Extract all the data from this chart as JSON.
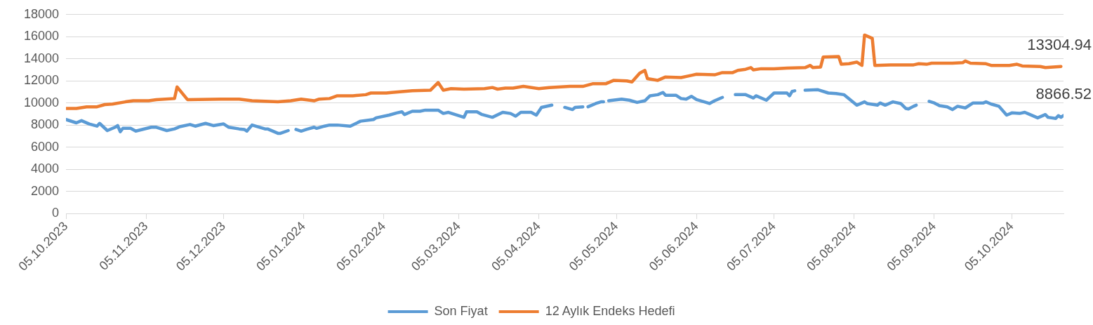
{
  "chart_data": {
    "type": "line",
    "grid": "y",
    "legend": "bottom",
    "xlim": [
      "2023-10-05",
      "2024-10-25"
    ],
    "xticks": [
      {
        "value": "2023-10-05",
        "label": "05.10.2023"
      },
      {
        "value": "2023-11-05",
        "label": "05.11.2023"
      },
      {
        "value": "2023-12-05",
        "label": "05.12.2023"
      },
      {
        "value": "2024-01-05",
        "label": "05.01.2024"
      },
      {
        "value": "2024-02-05",
        "label": "05.02.2024"
      },
      {
        "value": "2024-03-05",
        "label": "05.03.2024"
      },
      {
        "value": "2024-04-05",
        "label": "05.04.2024"
      },
      {
        "value": "2024-05-05",
        "label": "05.05.2024"
      },
      {
        "value": "2024-06-05",
        "label": "05.06.2024"
      },
      {
        "value": "2024-07-05",
        "label": "05.07.2024"
      },
      {
        "value": "2024-08-05",
        "label": "05.08.2024"
      },
      {
        "value": "2024-09-05",
        "label": "05.09.2024"
      },
      {
        "value": "2024-10-05",
        "label": "05.10.2024"
      }
    ],
    "ylim": [
      0,
      18000
    ],
    "yticks": [
      0,
      2000,
      4000,
      6000,
      8000,
      10000,
      12000,
      14000,
      16000,
      18000
    ],
    "series": [
      {
        "name": "Son Fiyat",
        "color": "#5b9bd5",
        "x": [
          "2023-10-05",
          "2023-10-09",
          "2023-10-11",
          "2023-10-14",
          "2023-10-17",
          "2023-10-18",
          "2023-10-21",
          "2023-10-24",
          "2023-10-25",
          "2023-10-26",
          "2023-10-27",
          "2023-10-30",
          "2023-11-01",
          "2023-11-07",
          "2023-11-09",
          "2023-11-13",
          "2023-11-16",
          "2023-11-18",
          "2023-11-22",
          "2023-11-24",
          "2023-11-28",
          "2023-12-01",
          "2023-12-05",
          "2023-12-07",
          "2023-12-11",
          "2023-12-13",
          "2023-12-14",
          "2023-12-16",
          "2023-12-21",
          "2023-12-22",
          "2023-12-26",
          "2023-12-27",
          "2023-12-30",
          "2024-01-01",
          "2024-01-02",
          "2024-01-04",
          "2024-01-06",
          "2024-01-09",
          "2024-01-10",
          "2024-01-13",
          "2024-01-15",
          "2024-01-18",
          "2024-01-23",
          "2024-01-27",
          "2024-02-01",
          "2024-02-02",
          "2024-02-07",
          "2024-02-10",
          "2024-02-12",
          "2024-02-13",
          "2024-02-16",
          "2024-02-19",
          "2024-02-21",
          "2024-02-26",
          "2024-02-28",
          "2024-03-01",
          "2024-03-07",
          "2024-03-08",
          "2024-03-12",
          "2024-03-14",
          "2024-03-18",
          "2024-03-22",
          "2024-03-25",
          "2024-03-27",
          "2024-03-29",
          "2024-04-02",
          "2024-04-04",
          "2024-04-06",
          "2024-04-10",
          "2024-04-12",
          "2024-04-15",
          "2024-04-18",
          "2024-04-19",
          "2024-04-22",
          "2024-04-23",
          "2024-04-24",
          "2024-04-27",
          "2024-04-29",
          "2024-04-30",
          "2024-05-01",
          "2024-05-02",
          "2024-05-07",
          "2024-05-10",
          "2024-05-13",
          "2024-05-16",
          "2024-05-18",
          "2024-05-21",
          "2024-05-23",
          "2024-05-24",
          "2024-05-28",
          "2024-05-30",
          "2024-06-01",
          "2024-06-03",
          "2024-06-05",
          "2024-06-08",
          "2024-06-10",
          "2024-06-12",
          "2024-06-15",
          "2024-06-17",
          "2024-06-20",
          "2024-06-24",
          "2024-06-27",
          "2024-06-28",
          "2024-07-02",
          "2024-07-05",
          "2024-07-10",
          "2024-07-11",
          "2024-07-12",
          "2024-07-13",
          "2024-07-15",
          "2024-07-17",
          "2024-07-22",
          "2024-07-26",
          "2024-07-29",
          "2024-08-01",
          "2024-08-06",
          "2024-08-09",
          "2024-08-10",
          "2024-08-14",
          "2024-08-15",
          "2024-08-17",
          "2024-08-20",
          "2024-08-23",
          "2024-08-25",
          "2024-08-26",
          "2024-08-28",
          "2024-08-29",
          "2024-08-31",
          "2024-09-03",
          "2024-09-05",
          "2024-09-07",
          "2024-09-10",
          "2024-09-12",
          "2024-09-14",
          "2024-09-17",
          "2024-09-20",
          "2024-09-24",
          "2024-09-25",
          "2024-09-27",
          "2024-09-30",
          "2024-10-03",
          "2024-10-05",
          "2024-10-08",
          "2024-10-10",
          "2024-10-12",
          "2024-10-15",
          "2024-10-18",
          "2024-10-19",
          "2024-10-22",
          "2024-10-23",
          "2024-10-24",
          "2024-10-25"
        ],
        "values": [
          8500,
          8200,
          8400,
          8100,
          7900,
          8150,
          7500,
          7800,
          7950,
          7400,
          7700,
          7700,
          7450,
          7800,
          7800,
          7500,
          7650,
          7850,
          8050,
          7900,
          8150,
          7950,
          8100,
          7800,
          7650,
          7600,
          7450,
          8000,
          7650,
          7650,
          7250,
          7250,
          7500,
          null,
          7600,
          7450,
          7600,
          7800,
          7700,
          7900,
          8000,
          8000,
          7900,
          8350,
          8500,
          8650,
          8900,
          9100,
          9200,
          8950,
          9250,
          9250,
          9350,
          9350,
          9050,
          9150,
          8700,
          9200,
          9200,
          8950,
          8700,
          9150,
          9050,
          8800,
          9150,
          9150,
          8900,
          9600,
          9800,
          null,
          9600,
          9400,
          9600,
          9650,
          null,
          9650,
          9950,
          10100,
          10100,
          null,
          10200,
          10350,
          10250,
          10050,
          10200,
          10650,
          10750,
          10950,
          10700,
          10700,
          10400,
          10350,
          10600,
          10300,
          10100,
          9950,
          10200,
          10500,
          null,
          10750,
          10750,
          10450,
          10650,
          10250,
          10900,
          10900,
          10650,
          11050,
          11100,
          null,
          11150,
          11200,
          10900,
          10850,
          10750,
          9800,
          10100,
          9950,
          9800,
          10000,
          9800,
          10100,
          9950,
          9500,
          9450,
          9700,
          9800,
          null,
          10150,
          10000,
          9750,
          9650,
          9400,
          9700,
          9550,
          10000,
          10000,
          10100,
          9900,
          9700,
          8900,
          9100,
          9050,
          9150,
          8950,
          8650,
          8950,
          8700,
          8600,
          8850,
          8700,
          8866.52
        ],
        "value_labels": [
          null,
          null,
          null,
          null,
          null,
          null,
          null,
          null,
          null,
          null,
          null,
          null,
          null,
          null,
          null,
          null,
          null,
          null,
          null,
          null,
          null,
          null,
          null,
          null,
          null,
          null,
          null,
          null,
          null,
          null,
          null,
          null,
          null,
          null,
          null,
          null,
          null,
          null,
          null,
          null,
          null,
          null,
          null,
          null,
          null,
          null,
          null,
          null,
          null,
          null,
          null,
          null,
          null,
          null,
          null,
          null,
          null,
          null,
          null,
          null,
          null,
          null,
          null,
          null,
          null,
          null,
          null,
          null,
          null,
          null,
          null,
          null,
          null,
          null,
          null,
          null,
          null,
          null,
          null,
          null,
          null,
          null,
          null,
          null,
          null,
          null,
          null,
          null,
          null,
          null,
          null,
          null,
          null,
          null,
          null,
          null,
          null,
          null,
          null,
          null,
          null,
          null,
          null,
          null,
          null,
          null,
          null,
          null,
          null,
          null,
          null,
          null,
          null,
          null,
          null,
          null,
          null,
          null,
          null,
          null,
          null,
          null,
          null,
          null,
          null,
          null,
          null,
          null,
          null,
          null,
          null,
          null,
          null,
          null,
          null,
          null,
          null,
          null,
          null,
          null,
          null,
          null,
          null,
          null,
          null,
          null,
          null,
          null,
          null,
          null,
          null,
          "8866.52"
        ]
      },
      {
        "name": "12 Aylık Endeks Hedefi",
        "color": "#ed7d31",
        "x": [
          "2023-10-05",
          "2023-10-09",
          "2023-10-13",
          "2023-10-17",
          "2023-10-20",
          "2023-10-23",
          "2023-10-28",
          "2023-10-31",
          "2023-11-06",
          "2023-11-09",
          "2023-11-16",
          "2023-11-17",
          "2023-11-21",
          "2023-12-04",
          "2023-12-11",
          "2023-12-16",
          "2023-12-26",
          "2023-12-31",
          "2024-01-04",
          "2024-01-09",
          "2024-01-11",
          "2024-01-15",
          "2024-01-18",
          "2024-01-24",
          "2024-01-29",
          "2024-01-31",
          "2024-02-06",
          "2024-02-08",
          "2024-02-16",
          "2024-02-23",
          "2024-02-26",
          "2024-02-28",
          "2024-03-02",
          "2024-03-07",
          "2024-03-15",
          "2024-03-18",
          "2024-03-20",
          "2024-03-23",
          "2024-03-26",
          "2024-03-30",
          "2024-04-05",
          "2024-04-09",
          "2024-04-17",
          "2024-04-22",
          "2024-04-26",
          "2024-05-01",
          "2024-05-04",
          "2024-05-09",
          "2024-05-11",
          "2024-05-14",
          "2024-05-16",
          "2024-05-17",
          "2024-05-21",
          "2024-05-24",
          "2024-05-30",
          "2024-06-03",
          "2024-06-05",
          "2024-06-12",
          "2024-06-15",
          "2024-06-19",
          "2024-06-21",
          "2024-06-24",
          "2024-06-26",
          "2024-06-27",
          "2024-06-30",
          "2024-07-05",
          "2024-07-10",
          "2024-07-17",
          "2024-07-19",
          "2024-07-20",
          "2024-07-23",
          "2024-07-24",
          "2024-07-30",
          "2024-07-31",
          "2024-08-03",
          "2024-08-06",
          "2024-08-08",
          "2024-08-09",
          "2024-08-12",
          "2024-08-13",
          "2024-08-19",
          "2024-08-28",
          "2024-08-30",
          "2024-09-02",
          "2024-09-04",
          "2024-09-12",
          "2024-09-16",
          "2024-09-17",
          "2024-09-19",
          "2024-09-25",
          "2024-09-27",
          "2024-10-04",
          "2024-10-07",
          "2024-10-09",
          "2024-10-16",
          "2024-10-18",
          "2024-10-24"
        ],
        "values": [
          9500,
          9500,
          9650,
          9650,
          9850,
          9900,
          10100,
          10200,
          10200,
          10300,
          10400,
          11450,
          10300,
          10350,
          10350,
          10200,
          10100,
          10200,
          10350,
          10200,
          10350,
          10400,
          10650,
          10650,
          10750,
          10900,
          10900,
          10950,
          11100,
          11150,
          11850,
          11150,
          11300,
          11250,
          11300,
          11400,
          11250,
          11350,
          11350,
          11500,
          11300,
          11400,
          11500,
          11500,
          11750,
          11750,
          12050,
          12000,
          11900,
          12700,
          12950,
          12200,
          12050,
          12350,
          12300,
          12500,
          12600,
          12550,
          12750,
          12750,
          12950,
          13050,
          13200,
          13000,
          13100,
          13100,
          13150,
          13200,
          13400,
          13200,
          13250,
          14150,
          14200,
          13500,
          13550,
          13700,
          13400,
          16150,
          15850,
          13400,
          13450,
          13450,
          13550,
          13500,
          13600,
          13600,
          13650,
          13800,
          13600,
          13550,
          13400,
          13400,
          13500,
          13350,
          13300,
          13200,
          13304.94
        ],
        "value_labels": [
          null,
          null,
          null,
          null,
          null,
          null,
          null,
          null,
          null,
          null,
          null,
          null,
          null,
          null,
          null,
          null,
          null,
          null,
          null,
          null,
          null,
          null,
          null,
          null,
          null,
          null,
          null,
          null,
          null,
          null,
          null,
          null,
          null,
          null,
          null,
          null,
          null,
          null,
          null,
          null,
          null,
          null,
          null,
          null,
          null,
          null,
          null,
          null,
          null,
          null,
          null,
          null,
          null,
          null,
          null,
          null,
          null,
          null,
          null,
          null,
          null,
          null,
          null,
          null,
          null,
          null,
          null,
          null,
          null,
          null,
          null,
          null,
          null,
          null,
          null,
          null,
          null,
          null,
          null,
          null,
          null,
          null,
          null,
          null,
          null,
          null,
          null,
          null,
          null,
          null,
          null,
          null,
          null,
          null,
          null,
          null,
          "13304.94"
        ]
      }
    ]
  }
}
